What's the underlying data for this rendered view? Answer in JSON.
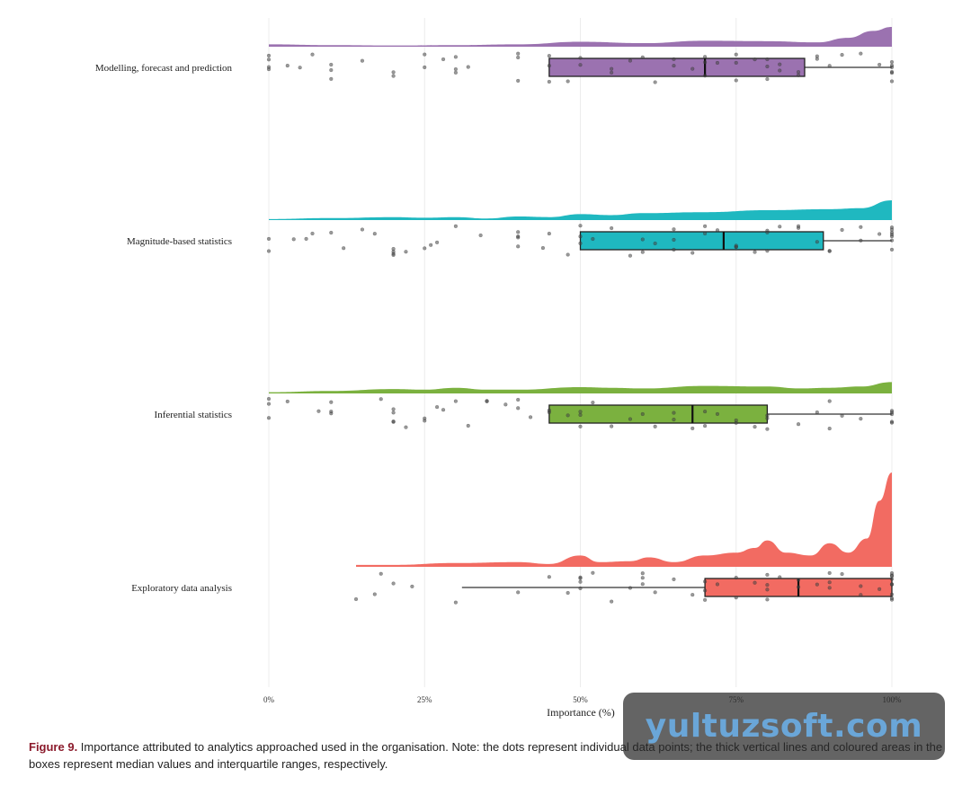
{
  "chart_data": {
    "type": "raincloud",
    "xlabel": "Importance (%)",
    "xlim": [
      0,
      100
    ],
    "xticks": [
      0,
      25,
      50,
      75,
      100
    ],
    "xtick_labels": [
      "0%",
      "25%",
      "50%",
      "75%",
      "100%"
    ],
    "grid": "vertical",
    "groups": [
      {
        "name": "Modelling, forecast and prediction",
        "color": "#9b72b0",
        "box": {
          "q1": 45,
          "median": 70,
          "q3": 86,
          "whisker_low": 45,
          "whisker_high": 100
        },
        "density": [
          [
            0,
            0.12
          ],
          [
            10,
            0.08
          ],
          [
            20,
            0.06
          ],
          [
            30,
            0.08
          ],
          [
            40,
            0.12
          ],
          [
            50,
            0.25
          ],
          [
            60,
            0.18
          ],
          [
            70,
            0.3
          ],
          [
            80,
            0.28
          ],
          [
            88,
            0.22
          ],
          [
            93,
            0.45
          ],
          [
            97,
            0.8
          ],
          [
            100,
            1.0
          ]
        ],
        "points": [
          0,
          0,
          0,
          0,
          3,
          5,
          7,
          10,
          10,
          10,
          15,
          20,
          20,
          25,
          25,
          28,
          30,
          30,
          30,
          32,
          40,
          40,
          40,
          45,
          45,
          45,
          48,
          50,
          50,
          55,
          55,
          58,
          60,
          62,
          65,
          65,
          68,
          70,
          70,
          70,
          72,
          75,
          75,
          75,
          78,
          80,
          80,
          80,
          82,
          82,
          85,
          85,
          88,
          88,
          90,
          92,
          95,
          98,
          100,
          100,
          100,
          100,
          100,
          100
        ]
      },
      {
        "name": "Magnitude-based statistics",
        "color": "#1fb8c0",
        "box": {
          "q1": 50,
          "median": 73,
          "q3": 89,
          "whisker_low": 50,
          "whisker_high": 100
        },
        "density": [
          [
            0,
            0.05
          ],
          [
            10,
            0.1
          ],
          [
            20,
            0.15
          ],
          [
            25,
            0.12
          ],
          [
            30,
            0.15
          ],
          [
            35,
            0.08
          ],
          [
            40,
            0.18
          ],
          [
            45,
            0.15
          ],
          [
            50,
            0.3
          ],
          [
            55,
            0.25
          ],
          [
            60,
            0.35
          ],
          [
            70,
            0.4
          ],
          [
            80,
            0.5
          ],
          [
            90,
            0.55
          ],
          [
            95,
            0.6
          ],
          [
            100,
            1.0
          ]
        ],
        "points": [
          0,
          0,
          4,
          6,
          7,
          10,
          12,
          15,
          17,
          20,
          20,
          20,
          20,
          22,
          25,
          26,
          27,
          30,
          34,
          40,
          40,
          40,
          40,
          44,
          45,
          48,
          50,
          50,
          50,
          52,
          55,
          58,
          60,
          60,
          62,
          65,
          65,
          65,
          68,
          70,
          70,
          72,
          75,
          75,
          75,
          78,
          80,
          80,
          80,
          82,
          85,
          85,
          88,
          90,
          90,
          92,
          95,
          95,
          98,
          100,
          100,
          100,
          100,
          100,
          100,
          100
        ]
      },
      {
        "name": "Inferential statistics",
        "color": "#7bb13f",
        "box": {
          "q1": 45,
          "median": 68,
          "q3": 80,
          "whisker_low": 45,
          "whisker_high": 100
        },
        "density": [
          [
            0,
            0.1
          ],
          [
            10,
            0.2
          ],
          [
            20,
            0.35
          ],
          [
            25,
            0.3
          ],
          [
            30,
            0.45
          ],
          [
            35,
            0.3
          ],
          [
            40,
            0.3
          ],
          [
            50,
            0.5
          ],
          [
            55,
            0.45
          ],
          [
            60,
            0.4
          ],
          [
            70,
            0.6
          ],
          [
            80,
            0.55
          ],
          [
            85,
            0.4
          ],
          [
            90,
            0.45
          ],
          [
            95,
            0.55
          ],
          [
            100,
            0.9
          ]
        ],
        "points": [
          0,
          0,
          0,
          3,
          8,
          10,
          10,
          10,
          18,
          20,
          20,
          20,
          20,
          22,
          25,
          25,
          27,
          28,
          30,
          32,
          35,
          35,
          38,
          40,
          40,
          42,
          45,
          45,
          48,
          50,
          50,
          50,
          52,
          55,
          58,
          60,
          62,
          65,
          65,
          68,
          70,
          70,
          72,
          75,
          75,
          78,
          80,
          80,
          80,
          85,
          88,
          90,
          90,
          92,
          95,
          100,
          100,
          100,
          100,
          100
        ]
      },
      {
        "name": "Exploratory data analysis",
        "color": "#f26b62",
        "box": {
          "q1": 70,
          "median": 85,
          "q3": 100,
          "whisker_low": 31,
          "whisker_high": 100
        },
        "density": [
          [
            14,
            0.02
          ],
          [
            20,
            0.02
          ],
          [
            30,
            0.04
          ],
          [
            40,
            0.05
          ],
          [
            45,
            0.03
          ],
          [
            50,
            0.12
          ],
          [
            53,
            0.05
          ],
          [
            58,
            0.06
          ],
          [
            61,
            0.1
          ],
          [
            65,
            0.05
          ],
          [
            70,
            0.12
          ],
          [
            75,
            0.15
          ],
          [
            78,
            0.2
          ],
          [
            80,
            0.28
          ],
          [
            83,
            0.15
          ],
          [
            87,
            0.12
          ],
          [
            90,
            0.25
          ],
          [
            93,
            0.15
          ],
          [
            96,
            0.3
          ],
          [
            98,
            0.7
          ],
          [
            100,
            1.0
          ]
        ],
        "points": [
          14,
          17,
          18,
          20,
          23,
          30,
          40,
          45,
          48,
          50,
          50,
          50,
          50,
          52,
          55,
          58,
          60,
          60,
          60,
          62,
          65,
          68,
          70,
          70,
          70,
          72,
          75,
          75,
          78,
          80,
          80,
          80,
          80,
          82,
          85,
          85,
          88,
          90,
          90,
          90,
          92,
          95,
          95,
          98,
          100,
          100,
          100,
          100,
          100,
          100,
          100,
          100,
          100
        ]
      }
    ]
  },
  "caption": {
    "figure_label": "Figure 9.",
    "text": " Importance attributed to analytics approached used in the organisation. Note: the dots represent individual data points; the thick vertical lines and coloured areas in the boxes represent median values and interquartile ranges, respectively."
  },
  "watermark": "yultuzsoft.com"
}
